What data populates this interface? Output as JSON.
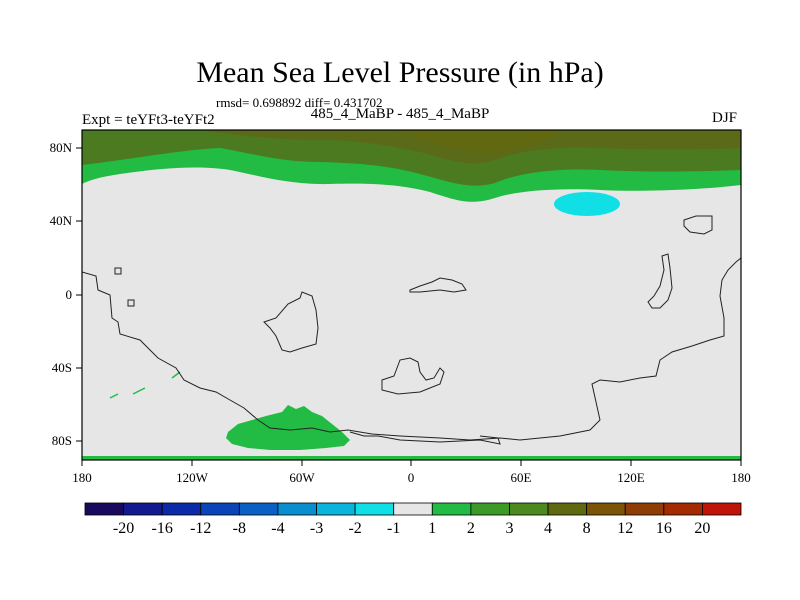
{
  "title": "Mean Sea Level Pressure (in hPa)",
  "stats": "rmsd= 0.698892 diff= 0.431702",
  "experiment": "Expt = teYFt3-teYFt2",
  "subtitle": "485_4_MaBP - 485_4_MaBP",
  "season": "DJF",
  "x_ticks": [
    "180",
    "120W",
    "60W",
    "0",
    "60E",
    "120E",
    "180"
  ],
  "y_ticks": [
    "80N",
    "40N",
    "0",
    "40S",
    "80S"
  ],
  "colorbar": {
    "labels": [
      "-20",
      "-16",
      "-12",
      "-8",
      "-4",
      "-3",
      "-2",
      "-1",
      "1",
      "2",
      "3",
      "4",
      "8",
      "12",
      "16",
      "20"
    ],
    "colors": [
      "#1a0a5e",
      "#121a8e",
      "#0a2aa8",
      "#0a44b8",
      "#0a60c4",
      "#0a8ed0",
      "#0ab4dc",
      "#10e0e6",
      "#e6e6e6",
      "#22bc44",
      "#3c9a28",
      "#4c8a20",
      "#606810",
      "#7c5408",
      "#8e3e04",
      "#a42a02",
      "#c01408"
    ]
  },
  "colors": {
    "background_field": "#e6e6e6",
    "band_north_dark": "#4c7a20",
    "band_north_olive": "#5a6a18",
    "band_green": "#22bc44",
    "cyan_anomaly": "#10e0e6",
    "antarctic_green": "#22bc44"
  }
}
